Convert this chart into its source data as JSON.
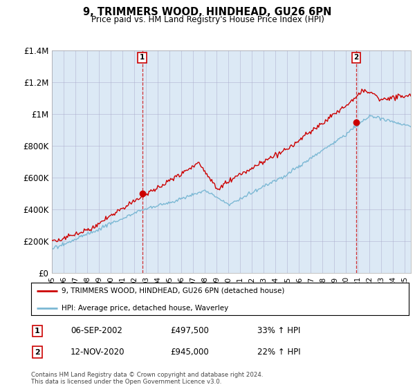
{
  "title": "9, TRIMMERS WOOD, HINDHEAD, GU26 6PN",
  "subtitle": "Price paid vs. HM Land Registry's House Price Index (HPI)",
  "ylim": [
    0,
    1400000
  ],
  "yticks": [
    0,
    200000,
    400000,
    600000,
    800000,
    1000000,
    1200000,
    1400000
  ],
  "ytick_labels": [
    "£0",
    "£200K",
    "£400K",
    "£600K",
    "£800K",
    "£1M",
    "£1.2M",
    "£1.4M"
  ],
  "hpi_color": "#7bb8d4",
  "price_color": "#cc0000",
  "chart_bg": "#dce9f5",
  "marker1_year": 2002.67,
  "marker2_year": 2020.87,
  "marker1_price": 497500,
  "marker2_price": 945000,
  "sale1_label": "1",
  "sale2_label": "2",
  "sale1_date": "06-SEP-2002",
  "sale1_price_str": "£497,500",
  "sale1_hpi": "33% ↑ HPI",
  "sale2_date": "12-NOV-2020",
  "sale2_price_str": "£945,000",
  "sale2_hpi": "22% ↑ HPI",
  "legend1": "9, TRIMMERS WOOD, HINDHEAD, GU26 6PN (detached house)",
  "legend2": "HPI: Average price, detached house, Waverley",
  "footnote": "Contains HM Land Registry data © Crown copyright and database right 2024.\nThis data is licensed under the Open Government Licence v3.0.",
  "background_color": "#ffffff",
  "grid_color": "#aaaacc"
}
